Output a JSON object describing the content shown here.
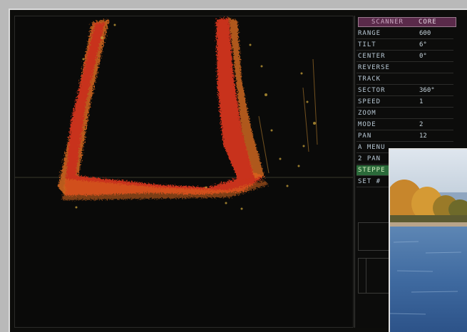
{
  "sonar_panel": {
    "header": {
      "title": "SCANNER",
      "mode": "CORE"
    },
    "menu": [
      {
        "label": "RANGE",
        "value": "600"
      },
      {
        "label": "TILT",
        "value": "6°"
      },
      {
        "label": "CENTER",
        "value": "0°"
      },
      {
        "label": "REVERSE",
        "value": ""
      },
      {
        "label": "TRACK",
        "value": ""
      },
      {
        "label": "SECTOR",
        "value": "360°"
      },
      {
        "label": "SPEED",
        "value": "1"
      },
      {
        "label": "ZOOM",
        "value": ""
      },
      {
        "label": "MODE",
        "value": "2"
      },
      {
        "label": "PAN",
        "value": "12"
      },
      {
        "label": "A MENU",
        "value": ""
      },
      {
        "label": "2 PAN",
        "value": ""
      },
      {
        "label": "STEPPE",
        "value": ""
      },
      {
        "label": "SET #",
        "value": ""
      }
    ],
    "highlighted_item": "STEPPE"
  },
  "colors": {
    "echo_strong": "#c8321a",
    "echo_mid": "#d86a1e",
    "echo_weak": "#c9a23a",
    "menu_highlight": "#2b6a3a"
  },
  "photo": {
    "subject": "lake shoreline with autumn trees"
  }
}
